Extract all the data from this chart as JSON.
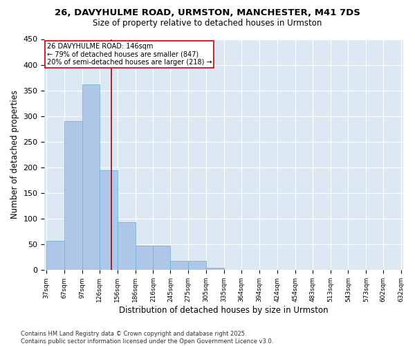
{
  "title": "26, DAVYHULME ROAD, URMSTON, MANCHESTER, M41 7DS",
  "subtitle": "Size of property relative to detached houses in Urmston",
  "xlabel": "Distribution of detached houses by size in Urmston",
  "ylabel": "Number of detached properties",
  "bar_color": "#aec6e8",
  "bar_edge_color": "#6aacd4",
  "background_color": "#dce9f5",
  "grid_color": "#ffffff",
  "vline_color": "#aa0000",
  "vline_x": 146,
  "annotation_text": "26 DAVYHULME ROAD: 146sqm\n← 79% of detached houses are smaller (847)\n20% of semi-detached houses are larger (218) →",
  "annotation_box_color": "#cc0000",
  "bins": [
    37,
    67,
    97,
    126,
    156,
    186,
    216,
    245,
    275,
    305,
    335,
    364,
    394,
    424,
    454,
    483,
    513,
    543,
    573,
    602,
    632
  ],
  "counts": [
    57,
    290,
    362,
    195,
    93,
    47,
    47,
    18,
    18,
    5,
    0,
    1,
    0,
    0,
    0,
    0,
    0,
    0,
    0,
    1
  ],
  "ylim": [
    0,
    450
  ],
  "yticks": [
    0,
    50,
    100,
    150,
    200,
    250,
    300,
    350,
    400,
    450
  ],
  "footer": "Contains HM Land Registry data © Crown copyright and database right 2025.\nContains public sector information licensed under the Open Government Licence v3.0.",
  "figsize": [
    6.0,
    5.0
  ],
  "dpi": 100
}
